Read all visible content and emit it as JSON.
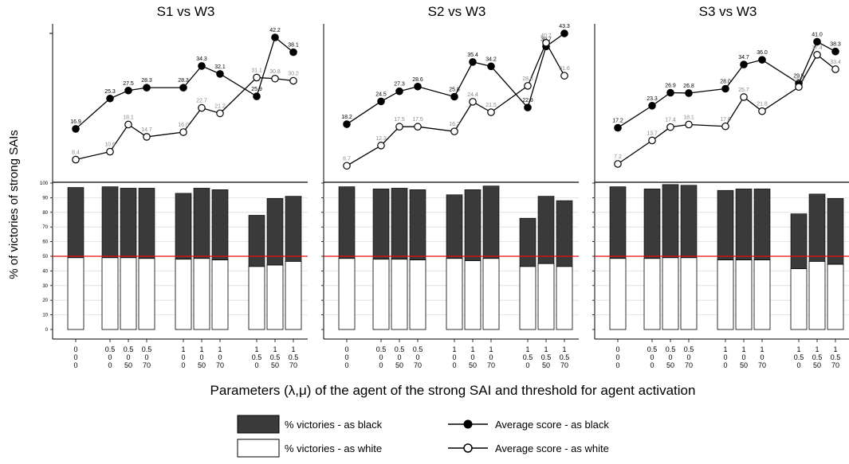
{
  "chart_data": {
    "type": "bar+line",
    "ylabel": "% of victories of strong SAIs",
    "xlabel": "Parameters (λ,μ) of the agent of the strong SAI and threshold for agent activation",
    "categories": [
      [
        "0",
        "0",
        "0"
      ],
      [
        "0.5",
        "0",
        "0"
      ],
      [
        "0.5",
        "0",
        "50"
      ],
      [
        "0.5",
        "0",
        "70"
      ],
      [
        "1",
        "0",
        "0"
      ],
      [
        "1",
        "0",
        "50"
      ],
      [
        "1",
        "0",
        "70"
      ],
      [
        "1",
        "0.5",
        "0"
      ],
      [
        "1",
        "0.5",
        "50"
      ],
      [
        "1",
        "0.5",
        "70"
      ]
    ],
    "groups": [
      1,
      3,
      3,
      3
    ],
    "bar_ylim": [
      0,
      100
    ],
    "bar_yticks": [
      "0",
      "10",
      "20",
      "30",
      "40",
      "50",
      "60",
      "70",
      "80",
      "90",
      "100"
    ],
    "reference_line": 50,
    "panels": [
      {
        "title": "S1 vs W3",
        "victories_total": [
          97,
          97.5,
          96.5,
          96.5,
          93,
          96.5,
          95.5,
          78,
          89.5,
          91
        ],
        "victories_white": [
          49,
          49,
          49,
          48.5,
          48,
          48.5,
          47.5,
          43,
          44,
          46.5
        ],
        "score_black": [
          16.9,
          25.3,
          27.5,
          28.3,
          28.3,
          34.3,
          32.1,
          25.9,
          42.2,
          38.1
        ],
        "score_black_labels": [
          "16.9",
          "25.3",
          "27.5",
          "28.3",
          "28.3",
          "34.3",
          "32.1",
          "25.9",
          "42.2",
          "38.1"
        ],
        "score_white": [
          8.4,
          10.6,
          18.1,
          14.7,
          16.0,
          22.7,
          21.2,
          31.1,
          30.8,
          30.2
        ],
        "score_white_labels": [
          "8.4",
          "10.6",
          "18.1",
          "14.7",
          "16.0",
          "22.7",
          "21.2",
          "31.1",
          "30.8",
          "30.2"
        ]
      },
      {
        "title": "S2 vs W3",
        "victories_total": [
          97.5,
          96,
          96.5,
          95.5,
          92,
          95.5,
          98,
          76,
          91,
          88
        ],
        "victories_white": [
          48.5,
          48,
          48,
          47.5,
          48.5,
          47,
          48.5,
          43,
          45,
          43
        ],
        "score_black": [
          18.2,
          24.5,
          27.3,
          28.6,
          25.8,
          35.4,
          34.2,
          22.8,
          39.7,
          43.3
        ],
        "score_black_labels": [
          "18.2",
          "24.5",
          "27.3",
          "28.6",
          "25.8",
          "35.4",
          "34.2",
          "22.8",
          "39.7",
          "43.3"
        ],
        "score_white": [
          6.7,
          12.3,
          17.5,
          17.5,
          16.2,
          24.4,
          21.5,
          28.8,
          40.7,
          31.6
        ],
        "score_white_labels": [
          "6.7",
          "12.3",
          "17.5",
          "17.5",
          "16.2",
          "24.4",
          "21.5",
          "28.8",
          "40.7",
          "31.6"
        ]
      },
      {
        "title": "S3 vs W3",
        "victories_total": [
          97.5,
          96,
          99,
          98.5,
          95,
          96,
          96,
          79,
          92.5,
          89.5
        ],
        "victories_white": [
          48.5,
          48.5,
          49,
          49,
          47.5,
          47.5,
          47.5,
          41.5,
          46.5,
          44.5
        ],
        "score_black": [
          17.2,
          23.3,
          26.9,
          26.8,
          28.0,
          34.7,
          36.0,
          29.5,
          41.0,
          38.3
        ],
        "score_black_labels": [
          "17.2",
          "23.3",
          "26.9",
          "26.8",
          "28.0",
          "34.7",
          "36.0",
          "29.5",
          "41.0",
          "38.3"
        ],
        "score_white": [
          7.2,
          13.7,
          17.4,
          18.1,
          17.6,
          25.7,
          21.8,
          28.5,
          37.4,
          33.4
        ],
        "score_white_labels": [
          "7.2",
          "13.7",
          "17.4",
          "18.1",
          "17.6",
          "25.7",
          "21.8",
          "28.5",
          "37.4",
          "33.4"
        ]
      }
    ],
    "legend": {
      "position": "bottom",
      "bar_black": "% victories - as black",
      "bar_white": "% victories - as white",
      "line_black": "Average score - as black",
      "line_white": "Average score - as white"
    },
    "colors": {
      "bar_black": "#3a3a3a",
      "bar_white": "#ffffff",
      "reference": "#e01010",
      "grid": "#dddddd"
    }
  }
}
